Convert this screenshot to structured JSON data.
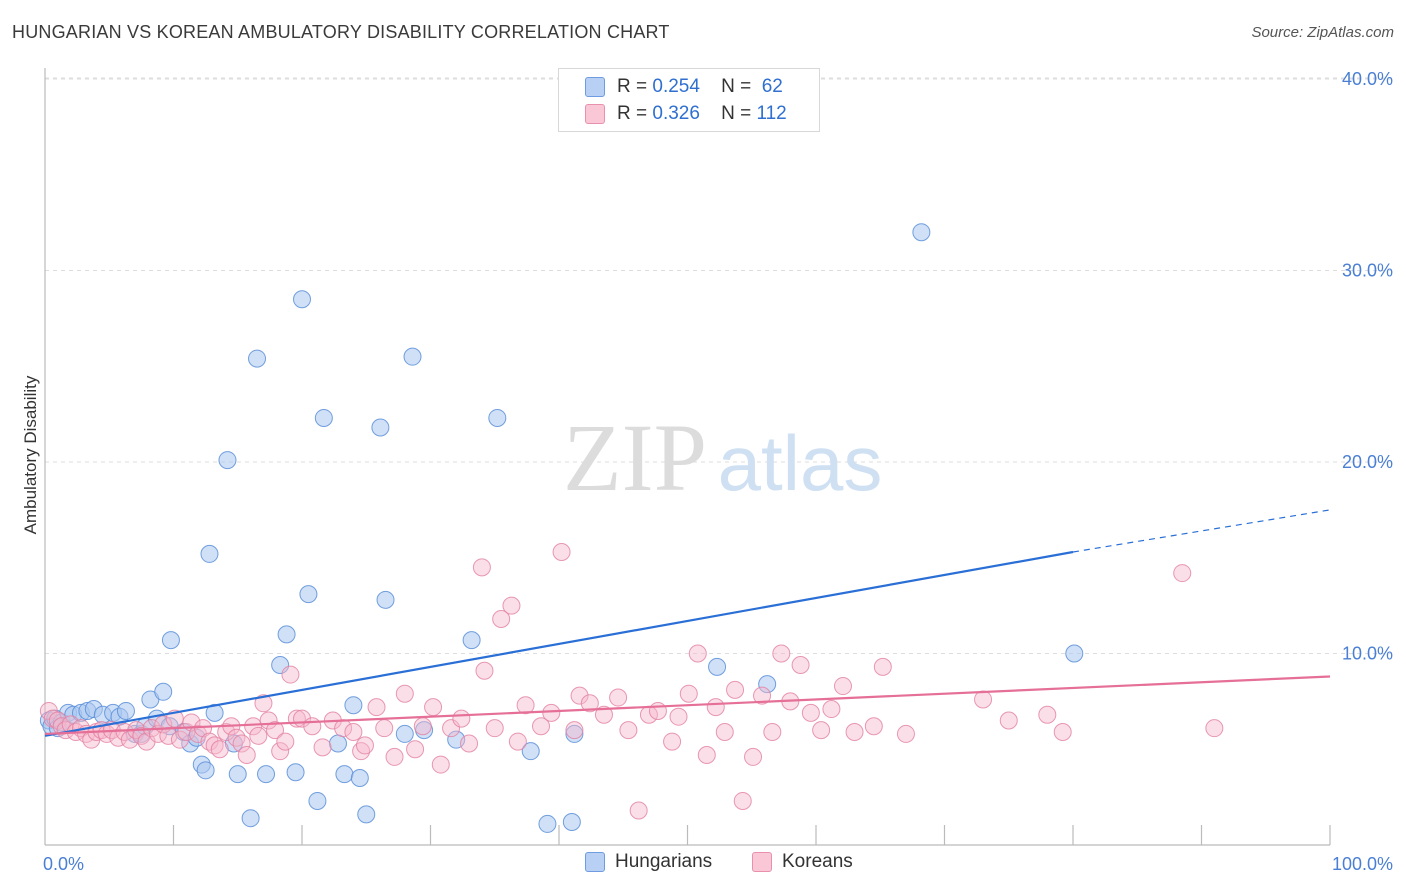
{
  "title": "HUNGARIAN VS KOREAN AMBULATORY DISABILITY CORRELATION CHART",
  "source": "Source: ZipAtlas.com",
  "watermark": {
    "zip": "ZIP",
    "atlas": "atlas"
  },
  "legend": {
    "rows": [
      {
        "r_label": "R =",
        "r_value": "0.254",
        "n_label": "N =",
        "n_value": "62"
      },
      {
        "r_label": "R =",
        "r_value": "0.326",
        "n_label": "N =",
        "n_value": "112"
      }
    ]
  },
  "bottom_legend": {
    "hungarians": "Hungarians",
    "koreans": "Koreans"
  },
  "colors": {
    "hungarians_fill": "#a9c6f0",
    "hungarians_stroke": "#5b8fd8",
    "hungarians_line": "#2a6fd6",
    "koreans_fill": "#f7b8cb",
    "koreans_stroke": "#e27fa0",
    "koreans_line": "#e56f97",
    "tick_text": "#4a7fd4",
    "grid": "#dddddd"
  },
  "chart_data": {
    "type": "scatter",
    "title": "HUNGARIAN VS KOREAN AMBULATORY DISABILITY CORRELATION CHART",
    "xlabel": "",
    "ylabel": "Ambulatory Disability",
    "xlim": [
      0,
      100
    ],
    "ylim": [
      0,
      42
    ],
    "x_tick_labels": [
      "0.0%",
      "100.0%"
    ],
    "y_ticks": [
      10,
      20,
      30,
      40
    ],
    "y_tick_labels": [
      "10.0%",
      "20.0%",
      "30.0%",
      "40.0%"
    ],
    "grid": true,
    "series": [
      {
        "name": "Hungarians",
        "r": 0.254,
        "n": 62,
        "trend": {
          "x0": 0,
          "y0": 5.7,
          "x1": 80,
          "y1": 15.3,
          "dashed_to_x": 100,
          "dashed_to_y": 17.5
        },
        "points": [
          [
            0.3,
            6.5
          ],
          [
            0.5,
            6.2
          ],
          [
            0.8,
            6.6
          ],
          [
            1.0,
            6.1
          ],
          [
            1.3,
            6.4
          ],
          [
            1.8,
            6.9
          ],
          [
            2.2,
            6.8
          ],
          [
            2.8,
            6.9
          ],
          [
            3.3,
            7.0
          ],
          [
            3.8,
            7.1
          ],
          [
            4.5,
            6.8
          ],
          [
            5.3,
            6.9
          ],
          [
            5.8,
            6.7
          ],
          [
            6.3,
            7.0
          ],
          [
            7.0,
            5.8
          ],
          [
            7.5,
            5.8
          ],
          [
            7.8,
            6.2
          ],
          [
            8.2,
            7.6
          ],
          [
            8.7,
            6.6
          ],
          [
            9.2,
            8.0
          ],
          [
            9.7,
            6.2
          ],
          [
            9.8,
            10.7
          ],
          [
            10.8,
            5.9
          ],
          [
            11.3,
            5.3
          ],
          [
            11.8,
            5.6
          ],
          [
            12.2,
            4.2
          ],
          [
            12.5,
            3.9
          ],
          [
            12.8,
            15.2
          ],
          [
            13.2,
            6.9
          ],
          [
            14.2,
            20.1
          ],
          [
            14.7,
            5.3
          ],
          [
            15.0,
            3.7
          ],
          [
            16.0,
            1.4
          ],
          [
            16.5,
            25.4
          ],
          [
            17.2,
            3.7
          ],
          [
            18.3,
            9.4
          ],
          [
            18.8,
            11.0
          ],
          [
            19.5,
            3.8
          ],
          [
            20.0,
            28.5
          ],
          [
            20.5,
            13.1
          ],
          [
            21.2,
            2.3
          ],
          [
            21.7,
            22.3
          ],
          [
            22.8,
            5.3
          ],
          [
            23.3,
            3.7
          ],
          [
            24.0,
            7.3
          ],
          [
            24.5,
            3.5
          ],
          [
            25.0,
            1.6
          ],
          [
            26.1,
            21.8
          ],
          [
            26.5,
            12.8
          ],
          [
            28.0,
            5.8
          ],
          [
            28.6,
            25.5
          ],
          [
            29.5,
            6.0
          ],
          [
            32.0,
            5.5
          ],
          [
            33.2,
            10.7
          ],
          [
            35.2,
            22.3
          ],
          [
            37.8,
            4.9
          ],
          [
            39.1,
            1.1
          ],
          [
            41.0,
            1.2
          ],
          [
            41.2,
            5.8
          ],
          [
            52.3,
            9.3
          ],
          [
            56.2,
            8.4
          ],
          [
            68.2,
            32.0
          ],
          [
            80.1,
            10.0
          ]
        ]
      },
      {
        "name": "Koreans",
        "r": 0.326,
        "n": 112,
        "trend": {
          "x0": 0,
          "y0": 5.8,
          "x1": 100,
          "y1": 8.8
        },
        "points": [
          [
            0.3,
            7.0
          ],
          [
            0.6,
            6.6
          ],
          [
            1.0,
            6.5
          ],
          [
            1.3,
            6.2
          ],
          [
            1.6,
            6.0
          ],
          [
            2.0,
            6.3
          ],
          [
            2.4,
            5.9
          ],
          [
            2.8,
            6.1
          ],
          [
            3.2,
            5.8
          ],
          [
            3.6,
            5.5
          ],
          [
            4.0,
            5.9
          ],
          [
            4.4,
            6.0
          ],
          [
            4.8,
            5.8
          ],
          [
            5.2,
            6.0
          ],
          [
            5.7,
            5.6
          ],
          [
            6.2,
            5.9
          ],
          [
            6.6,
            5.5
          ],
          [
            7.1,
            6.0
          ],
          [
            7.5,
            5.7
          ],
          [
            7.9,
            5.4
          ],
          [
            8.3,
            6.1
          ],
          [
            8.8,
            5.8
          ],
          [
            9.2,
            6.3
          ],
          [
            9.6,
            5.7
          ],
          [
            10.1,
            6.6
          ],
          [
            10.5,
            5.5
          ],
          [
            11.0,
            5.9
          ],
          [
            11.4,
            6.4
          ],
          [
            11.9,
            5.8
          ],
          [
            12.3,
            6.1
          ],
          [
            12.8,
            5.4
          ],
          [
            13.2,
            5.2
          ],
          [
            13.6,
            5.0
          ],
          [
            14.1,
            5.9
          ],
          [
            14.5,
            6.2
          ],
          [
            14.9,
            5.6
          ],
          [
            15.3,
            5.3
          ],
          [
            15.7,
            4.7
          ],
          [
            16.2,
            6.2
          ],
          [
            16.6,
            5.7
          ],
          [
            17.0,
            7.4
          ],
          [
            17.4,
            6.5
          ],
          [
            17.9,
            6.0
          ],
          [
            18.3,
            4.9
          ],
          [
            18.7,
            5.4
          ],
          [
            19.1,
            8.9
          ],
          [
            19.6,
            6.6
          ],
          [
            20.0,
            6.6
          ],
          [
            20.8,
            6.2
          ],
          [
            21.6,
            5.1
          ],
          [
            22.4,
            6.5
          ],
          [
            23.2,
            6.1
          ],
          [
            24.0,
            5.9
          ],
          [
            24.6,
            4.9
          ],
          [
            24.9,
            5.2
          ],
          [
            25.8,
            7.2
          ],
          [
            26.4,
            6.1
          ],
          [
            27.2,
            4.6
          ],
          [
            28.0,
            7.9
          ],
          [
            28.8,
            5.0
          ],
          [
            29.4,
            6.2
          ],
          [
            30.2,
            7.2
          ],
          [
            30.8,
            4.2
          ],
          [
            31.6,
            6.1
          ],
          [
            32.4,
            6.6
          ],
          [
            33.0,
            5.3
          ],
          [
            34.0,
            14.5
          ],
          [
            34.2,
            9.1
          ],
          [
            35.0,
            6.1
          ],
          [
            35.5,
            11.8
          ],
          [
            36.3,
            12.5
          ],
          [
            36.8,
            5.4
          ],
          [
            37.4,
            7.3
          ],
          [
            38.6,
            6.2
          ],
          [
            39.4,
            6.9
          ],
          [
            40.2,
            15.3
          ],
          [
            41.2,
            6.0
          ],
          [
            41.6,
            7.8
          ],
          [
            42.4,
            7.4
          ],
          [
            43.5,
            6.8
          ],
          [
            44.6,
            7.7
          ],
          [
            45.4,
            6.0
          ],
          [
            46.2,
            1.8
          ],
          [
            47.0,
            6.8
          ],
          [
            47.7,
            7.0
          ],
          [
            48.8,
            5.4
          ],
          [
            49.3,
            6.7
          ],
          [
            50.1,
            7.9
          ],
          [
            50.8,
            10.0
          ],
          [
            51.5,
            4.7
          ],
          [
            52.2,
            7.2
          ],
          [
            52.9,
            5.9
          ],
          [
            53.7,
            8.1
          ],
          [
            54.3,
            2.3
          ],
          [
            55.1,
            4.6
          ],
          [
            55.8,
            7.8
          ],
          [
            56.6,
            5.9
          ],
          [
            57.3,
            10.0
          ],
          [
            58.0,
            7.5
          ],
          [
            58.8,
            9.4
          ],
          [
            59.6,
            6.9
          ],
          [
            60.4,
            6.0
          ],
          [
            61.2,
            7.1
          ],
          [
            62.1,
            8.3
          ],
          [
            63.0,
            5.9
          ],
          [
            64.5,
            6.2
          ],
          [
            65.2,
            9.3
          ],
          [
            67.0,
            5.8
          ],
          [
            73.0,
            7.6
          ],
          [
            75.0,
            6.5
          ],
          [
            78.0,
            6.8
          ],
          [
            79.2,
            5.9
          ],
          [
            88.5,
            14.2
          ],
          [
            91.0,
            6.1
          ]
        ]
      }
    ]
  }
}
